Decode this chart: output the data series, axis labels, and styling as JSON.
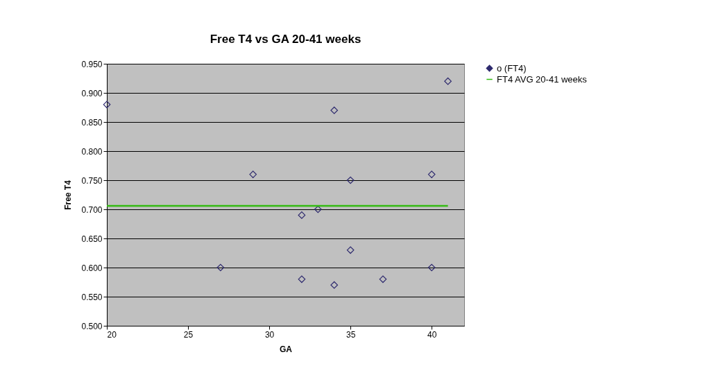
{
  "chart_data": {
    "type": "scatter",
    "title": "Free T4 vs GA 20-41 weeks",
    "xlabel": "GA",
    "ylabel": "Free T4",
    "xlim": [
      20,
      42
    ],
    "xticks": [
      20,
      25,
      30,
      35,
      40
    ],
    "ylim": [
      0.5,
      0.95
    ],
    "yticks": [
      {
        "value": 0.5,
        "label": "0.500"
      },
      {
        "value": 0.55,
        "label": "0.550"
      },
      {
        "value": 0.6,
        "label": "0.600"
      },
      {
        "value": 0.65,
        "label": "0.650"
      },
      {
        "value": 0.7,
        "label": "0.700"
      },
      {
        "value": 0.75,
        "label": "0.750"
      },
      {
        "value": 0.8,
        "label": "0.800"
      },
      {
        "value": 0.85,
        "label": "0.850"
      },
      {
        "value": 0.9,
        "label": "0.900"
      },
      {
        "value": 0.95,
        "label": "0.950"
      }
    ],
    "grid": "y",
    "legend": "right",
    "series": [
      {
        "name": "o (FT4)",
        "marker": "diamond",
        "color": "#2e2a6e",
        "x": [
          20,
          27,
          29,
          32,
          32,
          33,
          34,
          34,
          35,
          35,
          37,
          40,
          40,
          41
        ],
        "values": [
          0.88,
          0.6,
          0.76,
          0.69,
          0.58,
          0.7,
          0.87,
          0.57,
          0.75,
          0.63,
          0.58,
          0.76,
          0.6,
          0.92
        ]
      },
      {
        "name": "FT4 AVG 20-41 weeks",
        "type": "line",
        "line_style": "solid",
        "color": "#33bb11",
        "x": [
          20,
          41
        ],
        "values": [
          0.706,
          0.706
        ]
      }
    ]
  }
}
